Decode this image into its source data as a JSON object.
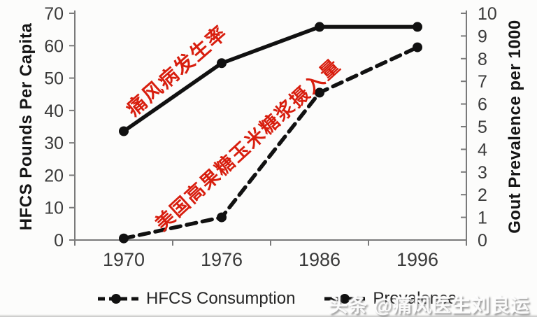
{
  "watermark": {
    "text": "头条 @痛风医生刘良运"
  },
  "colors": {
    "annotation_red": "#d81e0e",
    "axis_gray": "#7a7a7a",
    "tick_text": "#3a3a3a",
    "line_black": "#111111",
    "background": "#fcfcfb"
  },
  "chart_data": {
    "type": "line",
    "x_categories": [
      "1970",
      "1976",
      "1986",
      "1996"
    ],
    "series": [
      {
        "name": "HFCS Consumption",
        "axis": "left",
        "line_style": "dashed",
        "marker": "circle",
        "color": "#111111",
        "values": [
          0.5,
          7,
          45.5,
          59.5
        ]
      },
      {
        "name": "Prevalence",
        "axis": "right",
        "line_style": "solid",
        "marker": "circle",
        "color": "#111111",
        "values": [
          4.8,
          7.8,
          9.4,
          9.4
        ]
      }
    ],
    "left_axis": {
      "label": "HFCS Pounds Per Capita",
      "min": 0,
      "max": 70,
      "ticks": [
        0,
        10,
        20,
        30,
        40,
        50,
        60,
        70
      ]
    },
    "right_axis": {
      "label": "Gout Prevalence per 1000",
      "min": 0,
      "max": 10,
      "ticks": [
        0,
        1,
        2,
        3,
        4,
        5,
        6,
        7,
        8,
        9,
        10
      ]
    },
    "legend": {
      "position": "bottom",
      "items": [
        {
          "label": "HFCS Consumption",
          "line_style": "dashed"
        },
        {
          "label": "Prevalence",
          "line_style": "solid"
        }
      ]
    },
    "annotations": [
      {
        "text": "痛风病发生率",
        "color": "#d81e0e",
        "rotation_deg": -41,
        "target_series": "Prevalence"
      },
      {
        "text": "美国高果糖玉米糖浆摄入量",
        "color": "#d81e0e",
        "rotation_deg": -42.5,
        "target_series": "HFCS Consumption"
      }
    ],
    "grid": false
  }
}
